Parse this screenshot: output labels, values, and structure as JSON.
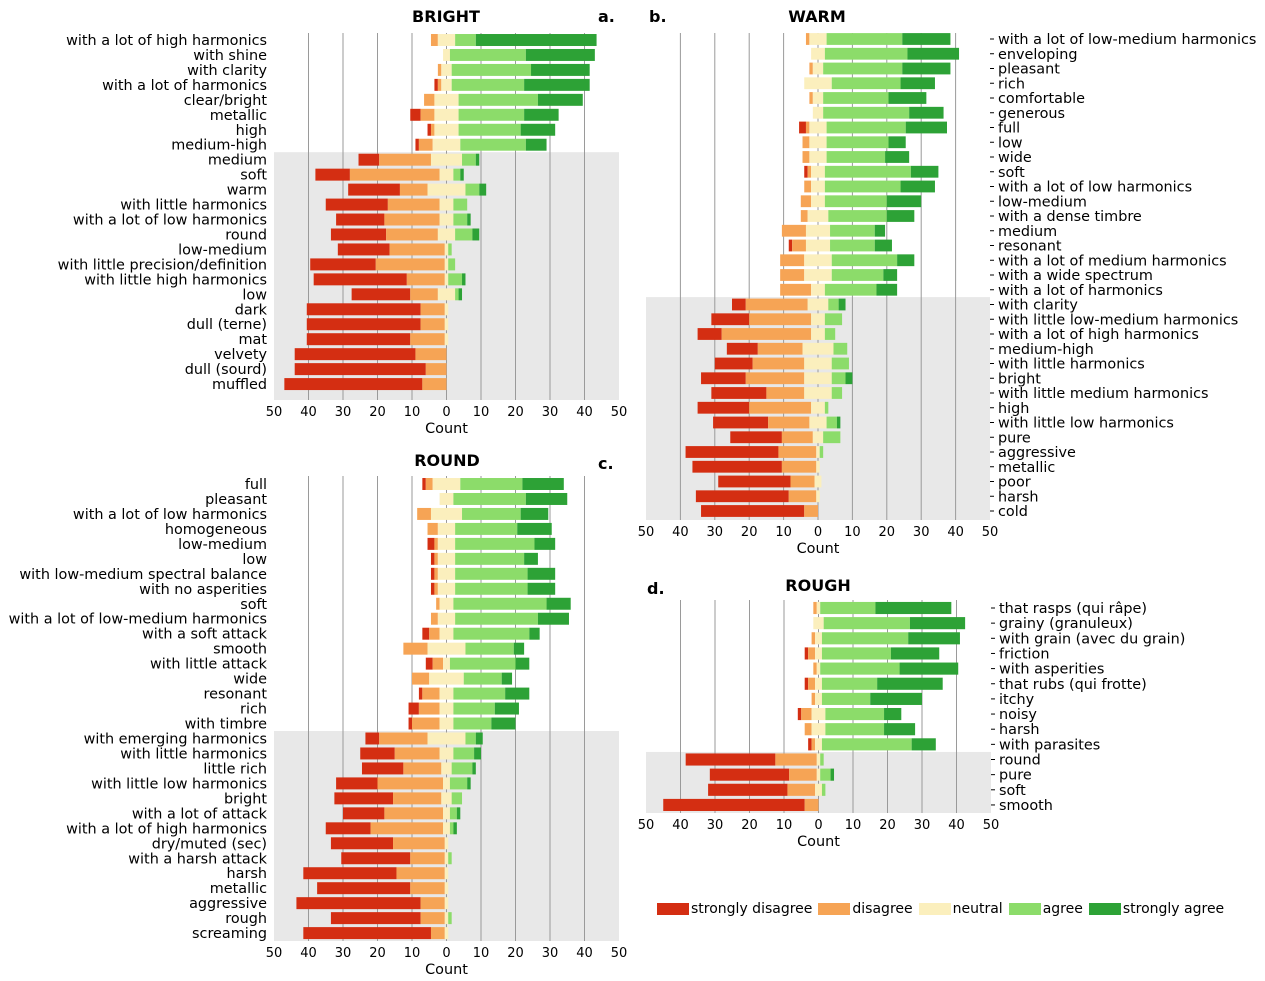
{
  "colors": {
    "strongly_disagree": "#d42e12",
    "disagree": "#f6a455",
    "neutral": "#fbefbd",
    "agree": "#8cdc6a",
    "strongly_agree": "#2da236",
    "shade": "#e8e8e8",
    "grid": "#9a9a9a"
  },
  "legend": {
    "items": [
      {
        "key": "strongly_disagree",
        "label": "strongly disagree"
      },
      {
        "key": "disagree",
        "label": "disagree"
      },
      {
        "key": "neutral",
        "label": "neutral"
      },
      {
        "key": "agree",
        "label": "agree"
      },
      {
        "key": "strongly_agree",
        "label": "strongly agree"
      }
    ]
  },
  "chart_data": [
    {
      "type": "bar",
      "stacking": "diverging",
      "title": "BRIGHT",
      "panel_label": "a.",
      "xlabel": "Count",
      "xlim": [
        -50,
        50
      ],
      "xticks": [
        50,
        40,
        30,
        20,
        10,
        0,
        10,
        20,
        30,
        40,
        50
      ],
      "series": [
        "strongly disagree",
        "disagree",
        "neutral",
        "agree",
        "strongly agree"
      ],
      "shaded_from_row": 8,
      "rows": [
        {
          "label": "with a lot of high harmonics",
          "values": [
            0,
            2,
            5,
            6,
            35
          ]
        },
        {
          "label": "with shine",
          "values": [
            0,
            0,
            2,
            22,
            20
          ]
        },
        {
          "label": "with clarity",
          "values": [
            0,
            1,
            3,
            23,
            17
          ]
        },
        {
          "label": "with a lot of harmonics",
          "values": [
            1,
            1,
            3,
            21,
            19
          ]
        },
        {
          "label": "clear/bright",
          "values": [
            0,
            3,
            7,
            23,
            13
          ]
        },
        {
          "label": "metallic",
          "values": [
            3,
            4,
            7,
            19,
            10
          ]
        },
        {
          "label": "high",
          "values": [
            1,
            1,
            7,
            18,
            10
          ]
        },
        {
          "label": "medium-high",
          "values": [
            1,
            4,
            8,
            19,
            6
          ]
        },
        {
          "label": "medium",
          "values": [
            6,
            15,
            9,
            4,
            1
          ]
        },
        {
          "label": "soft",
          "values": [
            10,
            26,
            4,
            2,
            1
          ]
        },
        {
          "label": "warm",
          "values": [
            15,
            8,
            11,
            4,
            2
          ]
        },
        {
          "label": "with little harmonics",
          "values": [
            18,
            15,
            4,
            4,
            0
          ]
        },
        {
          "label": "with a lot of low harmonics",
          "values": [
            14,
            16,
            4,
            4,
            1
          ]
        },
        {
          "label": "round",
          "values": [
            16,
            15,
            5,
            5,
            2
          ]
        },
        {
          "label": "low-medium",
          "values": [
            15,
            16,
            1,
            1,
            0
          ]
        },
        {
          "label": "with little precision/definition",
          "values": [
            19,
            20,
            1,
            2,
            0
          ]
        },
        {
          "label": "with little high harmonics",
          "values": [
            27,
            11,
            1,
            4,
            1
          ]
        },
        {
          "label": "low",
          "values": [
            17,
            8,
            5,
            1,
            1
          ]
        },
        {
          "label": "dark",
          "values": [
            33,
            7,
            1,
            0,
            0
          ]
        },
        {
          "label": "dull (terne)",
          "values": [
            33,
            7,
            1,
            0,
            0
          ]
        },
        {
          "label": "mat",
          "values": [
            30,
            10,
            1,
            0,
            0
          ]
        },
        {
          "label": "velvety",
          "values": [
            35,
            9,
            0,
            0,
            0
          ]
        },
        {
          "label": "dull (sourd)",
          "values": [
            38,
            6,
            0,
            0,
            0
          ]
        },
        {
          "label": "muffled",
          "values": [
            40,
            7,
            0,
            0,
            0
          ]
        }
      ]
    },
    {
      "type": "bar",
      "stacking": "diverging",
      "title": "WARM",
      "panel_label": "b.",
      "xlabel": "Count",
      "xlim": [
        -50,
        50
      ],
      "xticks": [
        50,
        40,
        30,
        20,
        10,
        0,
        10,
        20,
        30,
        40,
        50
      ],
      "series": [
        "strongly disagree",
        "disagree",
        "neutral",
        "agree",
        "strongly agree"
      ],
      "shaded_from_row": 18,
      "rows": [
        {
          "label": "with a lot of low-medium harmonics",
          "values": [
            0,
            1,
            5,
            22,
            14
          ]
        },
        {
          "label": "enveloping",
          "values": [
            0,
            0,
            4,
            24,
            15
          ]
        },
        {
          "label": "pleasant",
          "values": [
            0,
            1,
            3,
            23,
            14
          ]
        },
        {
          "label": "rich",
          "values": [
            0,
            0,
            8,
            20,
            10
          ]
        },
        {
          "label": "comfortable",
          "values": [
            0,
            1,
            3,
            19,
            11
          ]
        },
        {
          "label": "generous",
          "values": [
            0,
            0,
            3,
            25,
            10
          ]
        },
        {
          "label": "full",
          "values": [
            2,
            1,
            5,
            23,
            12
          ]
        },
        {
          "label": "low",
          "values": [
            0,
            2,
            5,
            18,
            5
          ]
        },
        {
          "label": "wide",
          "values": [
            0,
            2,
            5,
            17,
            7
          ]
        },
        {
          "label": "soft",
          "values": [
            1,
            1,
            4,
            25,
            8
          ]
        },
        {
          "label": "with a lot of low harmonics",
          "values": [
            0,
            2,
            4,
            22,
            10
          ]
        },
        {
          "label": "low-medium",
          "values": [
            0,
            3,
            4,
            18,
            10
          ]
        },
        {
          "label": "with a dense timbre",
          "values": [
            0,
            2,
            6,
            17,
            8
          ]
        },
        {
          "label": "medium",
          "values": [
            0,
            7,
            7,
            13,
            3
          ]
        },
        {
          "label": "resonant",
          "values": [
            1,
            4,
            7,
            13,
            5
          ]
        },
        {
          "label": "with a lot of medium harmonics",
          "values": [
            0,
            7,
            8,
            19,
            5
          ]
        },
        {
          "label": "with a wide spectrum",
          "values": [
            0,
            7,
            8,
            15,
            4
          ]
        },
        {
          "label": "with a lot of harmonics",
          "values": [
            0,
            9,
            4,
            15,
            6
          ]
        },
        {
          "label": "with clarity",
          "values": [
            4,
            18,
            6,
            3,
            2
          ]
        },
        {
          "label": "with little low-medium harmonics",
          "values": [
            11,
            18,
            4,
            5,
            0
          ]
        },
        {
          "label": "with a lot of high harmonics",
          "values": [
            7,
            26,
            4,
            3,
            0
          ]
        },
        {
          "label": "medium-high",
          "values": [
            9,
            13,
            9,
            4,
            0
          ]
        },
        {
          "label": "with little harmonics",
          "values": [
            11,
            15,
            8,
            5,
            0
          ]
        },
        {
          "label": "bright",
          "values": [
            13,
            17,
            8,
            4,
            2
          ]
        },
        {
          "label": "with little medium harmonics",
          "values": [
            16,
            11,
            8,
            3,
            0
          ]
        },
        {
          "label": "high",
          "values": [
            15,
            18,
            4,
            1,
            0
          ]
        },
        {
          "label": "with little low harmonics",
          "values": [
            16,
            12,
            5,
            3,
            1
          ]
        },
        {
          "label": "pure",
          "values": [
            15,
            9,
            3,
            5,
            0
          ]
        },
        {
          "label": "aggressive",
          "values": [
            27,
            11,
            1,
            1,
            0
          ]
        },
        {
          "label": "metallic",
          "values": [
            26,
            10,
            1,
            0,
            0
          ]
        },
        {
          "label": "poor",
          "values": [
            21,
            7,
            2,
            0,
            0
          ]
        },
        {
          "label": "harsh",
          "values": [
            27,
            8,
            1,
            0,
            0
          ]
        },
        {
          "label": "cold",
          "values": [
            30,
            4,
            0,
            0,
            0
          ]
        }
      ]
    },
    {
      "type": "bar",
      "stacking": "diverging",
      "title": "ROUND",
      "panel_label": "c.",
      "xlabel": "Count",
      "xlim": [
        -50,
        50
      ],
      "xticks": [
        50,
        40,
        30,
        20,
        10,
        0,
        10,
        20,
        30,
        40,
        50
      ],
      "series": [
        "strongly disagree",
        "disagree",
        "neutral",
        "agree",
        "strongly agree"
      ],
      "shaded_from_row": 17,
      "rows": [
        {
          "label": "full",
          "values": [
            1,
            2,
            8,
            18,
            12
          ]
        },
        {
          "label": "pleasant",
          "values": [
            0,
            0,
            4,
            21,
            12
          ]
        },
        {
          "label": "with a lot of low harmonics",
          "values": [
            0,
            4,
            9,
            17,
            8
          ]
        },
        {
          "label": "homogeneous",
          "values": [
            0,
            3,
            5,
            18,
            10
          ]
        },
        {
          "label": "low-medium",
          "values": [
            2,
            1,
            5,
            23,
            6
          ]
        },
        {
          "label": "low",
          "values": [
            1,
            1,
            5,
            20,
            4
          ]
        },
        {
          "label": "with low-medium spectral balance",
          "values": [
            1,
            1,
            5,
            21,
            8
          ]
        },
        {
          "label": "with no asperities",
          "values": [
            1,
            1,
            5,
            21,
            8
          ]
        },
        {
          "label": "soft",
          "values": [
            0,
            1,
            4,
            27,
            7
          ]
        },
        {
          "label": "with a lot of low-medium harmonics",
          "values": [
            0,
            2,
            5,
            24,
            9
          ]
        },
        {
          "label": "with a soft attack",
          "values": [
            2,
            3,
            4,
            22,
            3
          ]
        },
        {
          "label": "smooth",
          "values": [
            0,
            7,
            11,
            14,
            3
          ]
        },
        {
          "label": "with little attack",
          "values": [
            2,
            3,
            2,
            19,
            4
          ]
        },
        {
          "label": "wide",
          "values": [
            0,
            5,
            10,
            11,
            3
          ]
        },
        {
          "label": "resonant",
          "values": [
            1,
            5,
            4,
            15,
            7
          ]
        },
        {
          "label": "rich",
          "values": [
            3,
            6,
            4,
            12,
            7
          ]
        },
        {
          "label": "with timbre",
          "values": [
            1,
            8,
            4,
            11,
            7
          ]
        },
        {
          "label": "with emerging harmonics",
          "values": [
            4,
            14,
            11,
            3,
            2
          ]
        },
        {
          "label": "with little harmonics",
          "values": [
            10,
            13,
            4,
            6,
            2
          ]
        },
        {
          "label": "little rich",
          "values": [
            12,
            11,
            3,
            6,
            1
          ]
        },
        {
          "label": "with little low harmonics",
          "values": [
            12,
            19,
            2,
            5,
            1
          ]
        },
        {
          "label": "bright",
          "values": [
            17,
            14,
            3,
            3,
            0
          ]
        },
        {
          "label": "with a lot of attack",
          "values": [
            12,
            17,
            2,
            2,
            1
          ]
        },
        {
          "label": "with a lot of high harmonics",
          "values": [
            13,
            21,
            2,
            1,
            1
          ]
        },
        {
          "label": "dry/muted (sec)",
          "values": [
            18,
            15,
            1,
            0,
            0
          ]
        },
        {
          "label": "with a harsh attack",
          "values": [
            20,
            10,
            1,
            1,
            0
          ]
        },
        {
          "label": "harsh",
          "values": [
            27,
            14,
            1,
            0,
            0
          ]
        },
        {
          "label": "metallic",
          "values": [
            27,
            10,
            1,
            0,
            0
          ]
        },
        {
          "label": "aggressive",
          "values": [
            36,
            7,
            1,
            0,
            0
          ]
        },
        {
          "label": "rough",
          "values": [
            26,
            7,
            1,
            1,
            0
          ]
        },
        {
          "label": "screaming",
          "values": [
            37,
            4,
            1,
            0,
            0
          ]
        }
      ]
    },
    {
      "type": "bar",
      "stacking": "diverging",
      "title": "ROUGH",
      "panel_label": "d.",
      "xlabel": "Count",
      "xlim": [
        -50,
        50
      ],
      "xticks": [
        50,
        40,
        30,
        20,
        10,
        0,
        10,
        20,
        30,
        40,
        50
      ],
      "series": [
        "strongly disagree",
        "disagree",
        "neutral",
        "agree",
        "strongly agree"
      ],
      "shaded_from_row": 10,
      "rows": [
        {
          "label": "that rasps (qui râpe)",
          "values": [
            0,
            1,
            1,
            16,
            22
          ]
        },
        {
          "label": "grainy (granuleux)",
          "values": [
            0,
            0,
            3,
            25,
            16
          ]
        },
        {
          "label": "with grain (avec du grain)",
          "values": [
            0,
            1,
            2,
            25,
            15
          ]
        },
        {
          "label": "friction",
          "values": [
            1,
            2,
            2,
            20,
            14
          ]
        },
        {
          "label": "with asperities",
          "values": [
            0,
            1,
            1,
            23,
            17
          ]
        },
        {
          "label": "that rubs (qui frotte)",
          "values": [
            1,
            2,
            2,
            16,
            19
          ]
        },
        {
          "label": "itchy",
          "values": [
            0,
            1,
            2,
            14,
            15
          ]
        },
        {
          "label": "noisy",
          "values": [
            1,
            3,
            4,
            17,
            5
          ]
        },
        {
          "label": "harsh",
          "values": [
            0,
            2,
            4,
            17,
            9
          ]
        },
        {
          "label": "with parasites",
          "values": [
            1,
            1,
            2,
            26,
            7
          ]
        },
        {
          "label": "round",
          "values": [
            26,
            12,
            1,
            1,
            0
          ]
        },
        {
          "label": "pure",
          "values": [
            23,
            8,
            1,
            3,
            1
          ]
        },
        {
          "label": "soft",
          "values": [
            23,
            8,
            2,
            1,
            0
          ]
        },
        {
          "label": "smooth",
          "values": [
            41,
            4,
            0,
            0,
            0
          ]
        }
      ]
    }
  ]
}
